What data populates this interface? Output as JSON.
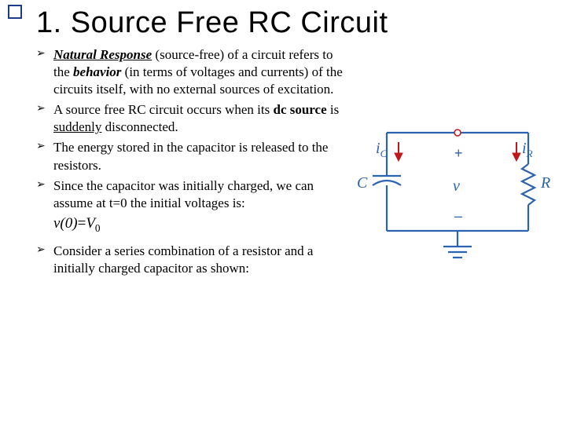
{
  "accent_square_border": "#1e3a8a",
  "title": "1. Source Free RC Circuit",
  "bullets": [
    {
      "runs": [
        {
          "t": "Natural Response",
          "cls": "b-i-u"
        },
        {
          "t": " (source-free) of a circuit refers to the ",
          "cls": ""
        },
        {
          "t": "behavior",
          "cls": "b-i"
        },
        {
          "t": " (in terms of voltages and currents) of the circuits itself, with no external sources of excitation.",
          "cls": ""
        }
      ]
    },
    {
      "runs": [
        {
          "t": "A source free RC circuit occurs when its ",
          "cls": ""
        },
        {
          "t": "dc source",
          "cls": "b"
        },
        {
          "t": " is ",
          "cls": ""
        },
        {
          "t": "suddenly",
          "cls": "u"
        },
        {
          "t": " disconnected.",
          "cls": ""
        }
      ]
    },
    {
      "runs": [
        {
          "t": "The energy stored in the capacitor is released to the resistors.",
          "cls": ""
        }
      ]
    },
    {
      "runs": [
        {
          "t": "Since the capacitor was initially charged, we can assume at t=0 the initial voltages is:",
          "cls": ""
        }
      ]
    }
  ],
  "formula": {
    "lhs": "v(0)",
    "eq": "=",
    "rhs_base": "V",
    "rhs_sub": "0"
  },
  "bullets2": [
    {
      "runs": [
        {
          "t": "Consider a series combination of a resistor and a initially charged capacitor as shown:",
          "cls": ""
        }
      ]
    }
  ],
  "circuit": {
    "wire_color": "#2b63af",
    "arrow_color": "#c0161c",
    "labels": {
      "iC": "i",
      "iC_sub": "C",
      "iR": "i",
      "iR_sub": "R",
      "C": "C",
      "v": "v",
      "R": "R",
      "plus": "+",
      "minus": "–"
    }
  }
}
